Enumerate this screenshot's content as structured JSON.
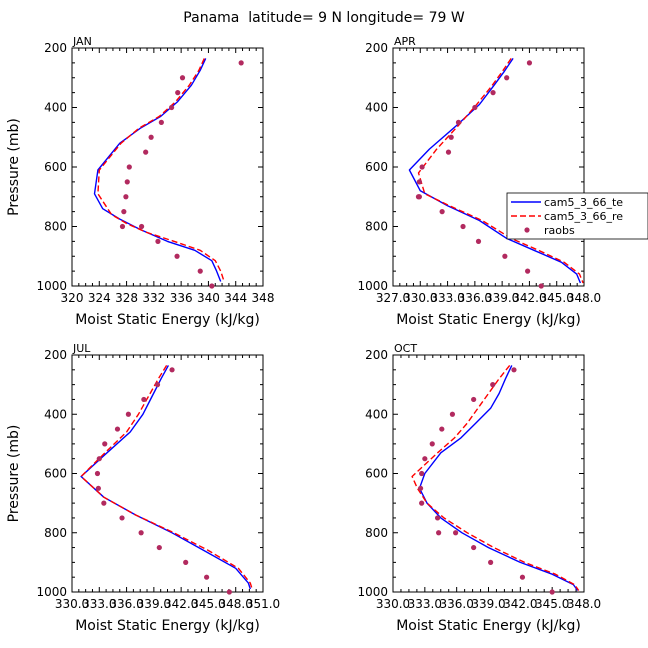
{
  "title": "Panama  latitude= 9 N longitude= 79 W",
  "chart_data": [
    {
      "type": "line",
      "label": "JAN",
      "xlabel": "Moist Static Energy (kJ/kg)",
      "ylabel": "Pressure (mb)",
      "xlim": [
        320,
        348
      ],
      "ylim": [
        200,
        1000
      ],
      "xticks": [
        320,
        324,
        328,
        332,
        336,
        340,
        344,
        348
      ],
      "xtick_labels": [
        "320",
        "324",
        "328",
        "332",
        "336",
        "340",
        "344",
        "348"
      ],
      "yticks": [
        200,
        400,
        600,
        800,
        1000
      ],
      "ytick_labels": [
        "200",
        "400",
        "600",
        "800",
        "1000"
      ],
      "series": [
        {
          "name": "cam5_3_66_te",
          "color": "#0000ff",
          "dash": "solid",
          "x": [
            339.6,
            338.8,
            337.5,
            335.5,
            333.0,
            330.0,
            327.0,
            323.8,
            323.3,
            324.5,
            327.0,
            330.0,
            334.0,
            338.0,
            340.5,
            341.2,
            341.8
          ],
          "y": [
            235,
            275,
            325,
            380,
            430,
            470,
            520,
            610,
            690,
            740,
            775,
            810,
            850,
            880,
            915,
            950,
            985
          ]
        },
        {
          "name": "cam5_3_66_re",
          "color": "#ff0000",
          "dash": "dashed",
          "x": [
            339.4,
            338.6,
            337.2,
            335.2,
            332.8,
            329.8,
            327.2,
            324.0,
            323.8,
            325.8,
            328.0,
            331.0,
            335.0,
            338.8,
            341.0,
            341.8,
            342.3
          ],
          "y": [
            235,
            275,
            325,
            380,
            430,
            470,
            520,
            610,
            690,
            760,
            790,
            820,
            850,
            880,
            915,
            950,
            985
          ]
        },
        {
          "name": "raobs",
          "color": "#b22a5f",
          "dash": "markers",
          "x": [
            344.8,
            336.2,
            335.5,
            334.6,
            333.1,
            331.6,
            330.8,
            328.4,
            328.1,
            327.9,
            327.6,
            327.4,
            330.2,
            332.6,
            335.4,
            338.8,
            340.5
          ],
          "y": [
            250,
            300,
            350,
            400,
            450,
            500,
            550,
            600,
            650,
            700,
            750,
            800,
            800,
            850,
            900,
            950,
            1000
          ]
        }
      ]
    },
    {
      "type": "line",
      "label": "APR",
      "xlabel": "Moist Static Energy (kJ/kg)",
      "ylabel": "",
      "xlim": [
        327.0,
        348.0
      ],
      "ylim": [
        200,
        1000
      ],
      "xticks": [
        327.0,
        330.0,
        333.0,
        336.0,
        339.0,
        342.0,
        345.0,
        348.0
      ],
      "xtick_labels": [
        "327.0",
        "330.0",
        "333.0",
        "336.0",
        "339.0",
        "342.0",
        "345.0",
        "348.0"
      ],
      "yticks": [
        200,
        400,
        600,
        800,
        1000
      ],
      "ytick_labels": [
        "200",
        "400",
        "600",
        "800",
        "1000"
      ],
      "series": [
        {
          "name": "cam5_3_66_te",
          "color": "#0000ff",
          "dash": "solid",
          "x": [
            340.2,
            339.2,
            338.0,
            336.5,
            334.0,
            331.0,
            328.8,
            330.0,
            333.0,
            336.5,
            339.5,
            342.5,
            345.5,
            347.2,
            347.6
          ],
          "y": [
            235,
            280,
            330,
            390,
            460,
            540,
            610,
            680,
            730,
            780,
            840,
            880,
            920,
            960,
            990
          ]
        },
        {
          "name": "cam5_3_66_re",
          "color": "#ff0000",
          "dash": "dashed",
          "x": [
            340.0,
            339.0,
            337.8,
            336.2,
            334.2,
            331.8,
            329.8,
            330.5,
            333.2,
            336.8,
            340.0,
            343.0,
            345.8,
            347.5,
            347.9
          ],
          "y": [
            235,
            280,
            330,
            390,
            460,
            540,
            620,
            690,
            730,
            780,
            840,
            880,
            920,
            960,
            990
          ]
        },
        {
          "name": "raobs",
          "color": "#b22a5f",
          "dash": "markers",
          "x": [
            342.0,
            339.5,
            338.0,
            336.0,
            334.2,
            333.4,
            333.1,
            330.2,
            329.9,
            329.8,
            329.9,
            332.4,
            334.7,
            336.4,
            339.3,
            341.8,
            343.3
          ],
          "y": [
            250,
            300,
            350,
            400,
            450,
            500,
            550,
            600,
            650,
            700,
            700,
            750,
            800,
            850,
            900,
            950,
            1000
          ]
        }
      ]
    },
    {
      "type": "line",
      "label": "JUL",
      "xlabel": "Moist Static Energy (kJ/kg)",
      "ylabel": "Pressure (mb)",
      "xlim": [
        330.0,
        351.0
      ],
      "ylim": [
        200,
        1000
      ],
      "xticks": [
        330.0,
        333.0,
        336.0,
        339.0,
        342.0,
        345.0,
        348.0,
        351.0
      ],
      "xtick_labels": [
        "330.0",
        "333.0",
        "336.0",
        "339.0",
        "342.0",
        "345.0",
        "348.0",
        "351.0"
      ],
      "yticks": [
        200,
        400,
        600,
        800,
        1000
      ],
      "ytick_labels": [
        "200",
        "400",
        "600",
        "800",
        "1000"
      ],
      "series": [
        {
          "name": "cam5_3_66_te",
          "color": "#0000ff",
          "dash": "solid",
          "x": [
            340.6,
            339.8,
            338.8,
            337.8,
            336.4,
            333.5,
            331.0,
            333.5,
            337.0,
            341.0,
            344.5,
            348.0,
            349.4,
            349.6
          ],
          "y": [
            235,
            280,
            340,
            400,
            460,
            540,
            610,
            680,
            740,
            800,
            860,
            920,
            970,
            990
          ]
        },
        {
          "name": "cam5_3_66_re",
          "color": "#ff0000",
          "dash": "dashed",
          "x": [
            340.4,
            339.5,
            338.4,
            337.3,
            336.0,
            333.3,
            331.0,
            333.5,
            337.0,
            341.2,
            345.0,
            348.3,
            349.6,
            349.8
          ],
          "y": [
            235,
            280,
            340,
            400,
            460,
            540,
            610,
            680,
            740,
            800,
            860,
            920,
            970,
            990
          ]
        },
        {
          "name": "raobs",
          "color": "#b22a5f",
          "dash": "markers",
          "x": [
            341.0,
            339.4,
            337.9,
            336.2,
            335.0,
            333.6,
            333.0,
            332.8,
            332.9,
            333.5,
            335.5,
            337.6,
            339.6,
            342.5,
            344.8,
            347.3
          ],
          "y": [
            250,
            300,
            350,
            400,
            450,
            500,
            550,
            600,
            650,
            700,
            750,
            800,
            850,
            900,
            950,
            1000
          ]
        }
      ]
    },
    {
      "type": "line",
      "label": "OCT",
      "xlabel": "Moist Static Energy (kJ/kg)",
      "ylabel": "",
      "xlim": [
        330.0,
        348.0
      ],
      "ylim": [
        200,
        1000
      ],
      "xticks": [
        330.0,
        333.0,
        336.0,
        339.0,
        342.0,
        345.0,
        348.0
      ],
      "xtick_labels": [
        "330.0",
        "333.0",
        "336.0",
        "339.0",
        "342.0",
        "345.0",
        "348.0"
      ],
      "yticks": [
        200,
        400,
        600,
        800,
        1000
      ],
      "ytick_labels": [
        "200",
        "400",
        "600",
        "800",
        "1000"
      ],
      "series": [
        {
          "name": "cam5_3_66_te",
          "color": "#0000ff",
          "dash": "solid",
          "x": [
            341.2,
            340.6,
            340.0,
            339.2,
            337.8,
            336.4,
            334.5,
            333.0,
            332.5,
            333.2,
            334.5,
            336.5,
            339.0,
            342.0,
            345.0,
            347.0,
            347.4
          ],
          "y": [
            235,
            280,
            330,
            380,
            430,
            480,
            530,
            600,
            650,
            700,
            750,
            800,
            850,
            900,
            940,
            975,
            995
          ]
        },
        {
          "name": "cam5_3_66_re",
          "color": "#ff0000",
          "dash": "dashed",
          "x": [
            341.0,
            340.0,
            339.0,
            338.0,
            337.0,
            335.8,
            334.2,
            331.8,
            332.3,
            333.2,
            334.8,
            337.0,
            339.5,
            342.4,
            345.3,
            347.1,
            347.5
          ],
          "y": [
            235,
            280,
            330,
            380,
            430,
            480,
            530,
            610,
            650,
            700,
            750,
            800,
            850,
            900,
            940,
            975,
            995
          ]
        },
        {
          "name": "raobs",
          "color": "#b22a5f",
          "dash": "markers",
          "x": [
            341.4,
            339.4,
            337.6,
            335.6,
            334.6,
            333.7,
            333.0,
            332.7,
            332.6,
            332.7,
            334.2,
            334.3,
            335.9,
            337.6,
            339.2,
            342.2,
            345.0
          ],
          "y": [
            250,
            300,
            350,
            400,
            450,
            500,
            550,
            600,
            650,
            700,
            750,
            800,
            800,
            850,
            900,
            950,
            1000
          ]
        }
      ]
    }
  ],
  "legend": {
    "panel": "APR",
    "entries": [
      {
        "label": "cam5_3_66_te",
        "color": "#0000ff",
        "style": "solid"
      },
      {
        "label": "cam5_3_66_re",
        "color": "#ff0000",
        "style": "dashed"
      },
      {
        "label": "raobs",
        "color": "#b22a5f",
        "style": "marker"
      }
    ]
  }
}
